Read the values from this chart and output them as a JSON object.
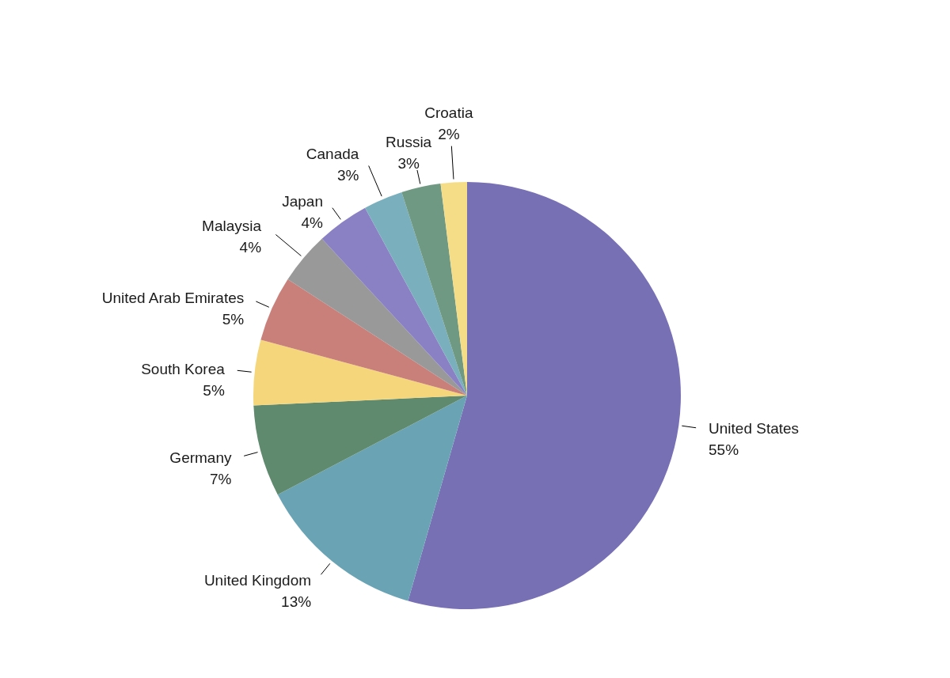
{
  "chart_data": {
    "type": "pie",
    "categories": [
      "United States",
      "United Kingdom",
      "Germany",
      "South Korea",
      "United Arab Emirates",
      "Malaysia",
      "Japan",
      "Canada",
      "Russia",
      "Croatia"
    ],
    "values": [
      55,
      13,
      7,
      5,
      5,
      4,
      4,
      3,
      3,
      2
    ],
    "value_labels": [
      "55%",
      "13%",
      "7%",
      "5%",
      "5%",
      "4%",
      "4%",
      "3%",
      "3%",
      "2%"
    ],
    "colors": [
      "#7870b5",
      "#6aa4b4",
      "#5f8a6e",
      "#f5d67a",
      "#c9807a",
      "#999999",
      "#8a80c4",
      "#7aafbd",
      "#6f9983",
      "#f5dc86"
    ]
  }
}
